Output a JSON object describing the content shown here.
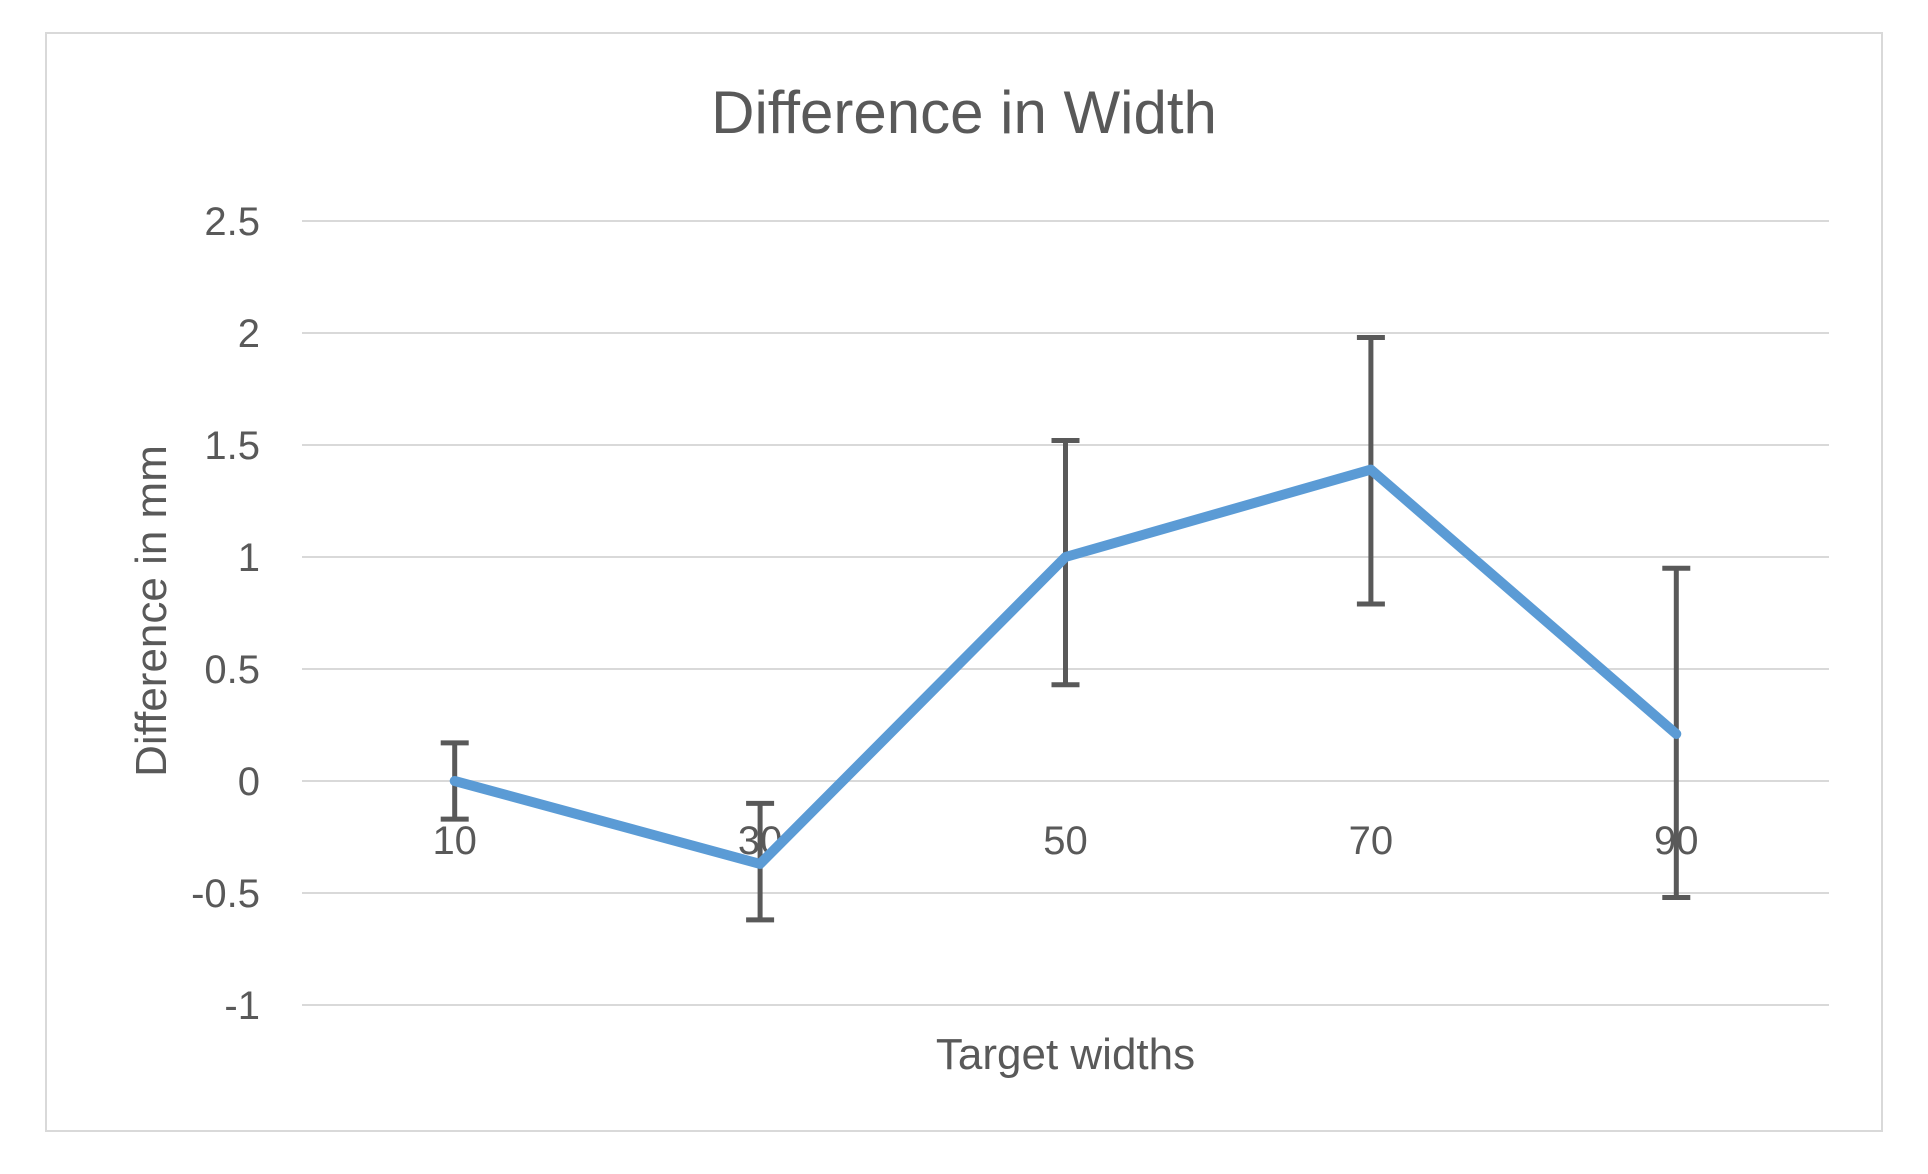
{
  "page": {
    "background": "#ffffff",
    "chart_border_color": "#d9d9d9"
  },
  "chart_data": {
    "type": "line",
    "title": "Difference in Width",
    "xlabel": "Target widths",
    "ylabel": "Difference in mm",
    "categories": [
      "10",
      "30",
      "50",
      "70",
      "90"
    ],
    "series": [
      {
        "values": [
          0,
          -0.37,
          1.0,
          1.39,
          0.21
        ],
        "error_high": [
          0.17,
          -0.1,
          1.52,
          1.98,
          0.95
        ],
        "error_low": [
          -0.17,
          -0.62,
          0.43,
          0.79,
          -0.52
        ]
      }
    ],
    "ylim": [
      -1,
      2.5
    ],
    "yticks": [
      2.5,
      2,
      1.5,
      1,
      0.5,
      0,
      -0.5,
      -1
    ],
    "ytick_labels": [
      "2.5",
      "2",
      "1.5",
      "1",
      "0.5",
      "0",
      "-0.5",
      "-1"
    ],
    "grid": true,
    "legend": false,
    "line_color": "#5b9bd5",
    "error_bar_color": "#595959",
    "grid_color": "#d9d9d9",
    "text_color": "#595959"
  }
}
